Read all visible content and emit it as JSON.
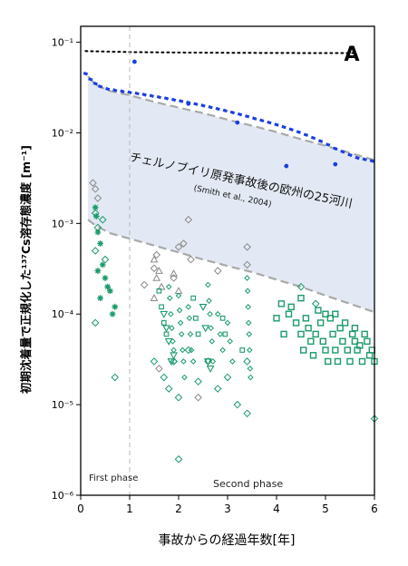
{
  "chart_data": {
    "type": "scatter",
    "panel_label": "A",
    "xlabel": "事故からの経過年数[年]",
    "ylabel": "初期沈着量で正規化した¹³⁷Cs溶存態濃度 [m⁻¹]",
    "xlim": [
      0,
      6
    ],
    "ylim": [
      1e-06,
      0.15
    ],
    "yscale": "log",
    "xticks": [
      0,
      1,
      2,
      3,
      4,
      5,
      6
    ],
    "ytick_labels": [
      "10⁻⁶",
      "10⁻⁵",
      "10⁻⁴",
      "10⁻³",
      "10⁻²",
      "10⁻¹"
    ],
    "grid": false,
    "phase_boundary_x": 1,
    "phases": [
      "First phase",
      "Second phase"
    ],
    "band_annotation": {
      "main": "チェルノブイリ原発事故後の欧州の25河川",
      "citation": "(Smith et al., 2004)"
    },
    "colors": {
      "band": "#e3e9f4",
      "blue": "#1b3fe0",
      "green": "#1a9b6a",
      "grey": "#8a8a8a"
    },
    "reference": {
      "band_upper": [
        [
          0.15,
          0.042
        ],
        [
          0.3,
          0.034
        ],
        [
          0.6,
          0.029
        ],
        [
          1,
          0.026
        ],
        [
          1.5,
          0.022
        ],
        [
          2,
          0.019
        ],
        [
          2.5,
          0.0165
        ],
        [
          3,
          0.014
        ],
        [
          3.5,
          0.012
        ],
        [
          4,
          0.0102
        ],
        [
          4.5,
          0.0085
        ],
        [
          5,
          0.0072
        ],
        [
          5.5,
          0.006
        ],
        [
          6,
          0.005
        ]
      ],
      "band_lower": [
        [
          0.15,
          0.0011
        ],
        [
          0.3,
          0.00095
        ],
        [
          0.6,
          0.00078
        ],
        [
          1,
          0.00068
        ],
        [
          1.5,
          0.00057
        ],
        [
          2,
          0.00048
        ],
        [
          2.5,
          0.0004
        ],
        [
          3,
          0.00034
        ],
        [
          3.5,
          0.00029
        ],
        [
          4,
          0.00024
        ],
        [
          4.5,
          0.0002
        ],
        [
          5,
          0.00016
        ],
        [
          5.5,
          0.00013
        ],
        [
          6,
          0.000105
        ]
      ],
      "dotted_top": [
        [
          0.1,
          0.08
        ],
        [
          0.5,
          0.079
        ],
        [
          1,
          0.078
        ],
        [
          2,
          0.077
        ],
        [
          3,
          0.0765
        ],
        [
          4,
          0.0762
        ],
        [
          5,
          0.076
        ],
        [
          5.6,
          0.076
        ]
      ],
      "blue_curve": [
        [
          0.1,
          0.045
        ],
        [
          0.2,
          0.039
        ],
        [
          0.3,
          0.035
        ],
        [
          0.4,
          0.0325
        ],
        [
          0.55,
          0.0305
        ],
        [
          0.7,
          0.0295
        ],
        [
          0.85,
          0.0287
        ],
        [
          1,
          0.028
        ],
        [
          1.15,
          0.0272
        ],
        [
          1.3,
          0.0264
        ],
        [
          1.45,
          0.0256
        ],
        [
          1.6,
          0.0248
        ],
        [
          1.75,
          0.024
        ],
        [
          1.9,
          0.0232
        ],
        [
          2.05,
          0.0224
        ],
        [
          2.2,
          0.0216
        ],
        [
          2.35,
          0.0208
        ],
        [
          2.5,
          0.02
        ],
        [
          2.65,
          0.0192
        ],
        [
          2.8,
          0.0184
        ],
        [
          2.95,
          0.0176
        ],
        [
          3.1,
          0.0168
        ],
        [
          3.25,
          0.016
        ],
        [
          3.4,
          0.0152
        ],
        [
          3.55,
          0.0144
        ],
        [
          3.7,
          0.0137
        ],
        [
          3.85,
          0.013
        ],
        [
          4,
          0.0123
        ],
        [
          4.15,
          0.0116
        ],
        [
          4.3,
          0.0109
        ],
        [
          4.45,
          0.0102
        ],
        [
          4.6,
          0.0095
        ],
        [
          4.75,
          0.0088
        ],
        [
          4.9,
          0.0081
        ],
        [
          5.05,
          0.0074
        ],
        [
          5.2,
          0.0067
        ],
        [
          5.35,
          0.0062
        ],
        [
          5.5,
          0.0057
        ],
        [
          5.65,
          0.0053
        ],
        [
          5.8,
          0.0051
        ],
        [
          5.95,
          0.0049
        ]
      ],
      "blue_outliers": [
        [
          1.1,
          0.061
        ],
        [
          2.2,
          0.021
        ],
        [
          3.2,
          0.013
        ],
        [
          4.2,
          0.0043
        ],
        [
          5.2,
          0.0045
        ]
      ]
    },
    "series": [
      {
        "marker": "diamond-open",
        "color": "#1a9b6a",
        "points": [
          [
            0.3,
            0.0013
          ],
          [
            0.35,
            0.0009
          ],
          [
            0.3,
            0.0005
          ],
          [
            0.45,
            0.0011
          ],
          [
            0.5,
            0.0004
          ],
          [
            0.3,
            8e-05
          ],
          [
            0.7,
            2e-05
          ],
          [
            1.5,
            3e-05
          ],
          [
            1.7,
            2e-05
          ],
          [
            1.8,
            1.5e-05
          ],
          [
            1.9,
            3e-05
          ],
          [
            2.0,
            1.2e-05
          ],
          [
            2.0,
            2.5e-06
          ],
          [
            2.2,
            4e-05
          ],
          [
            2.4,
            1.8e-05
          ],
          [
            2.6,
            3e-05
          ],
          [
            2.8,
            1.5e-05
          ],
          [
            3.0,
            2e-05
          ],
          [
            3.2,
            1e-05
          ],
          [
            3.4,
            3e-05
          ],
          [
            3.4,
            8e-06
          ],
          [
            4.5,
            0.0002
          ],
          [
            4.8,
            0.00013
          ],
          [
            6.0,
            7e-06
          ]
        ]
      },
      {
        "marker": "diamond-open",
        "color": "#8a8a8a",
        "points": [
          [
            0.25,
            0.0028
          ],
          [
            0.3,
            0.0024
          ],
          [
            0.35,
            0.0019
          ],
          [
            1.3,
            0.00021
          ],
          [
            1.5,
            0.00032
          ],
          [
            1.55,
            0.00045
          ],
          [
            1.9,
            0.00025
          ],
          [
            2.0,
            0.00055
          ],
          [
            2.1,
            0.0006
          ],
          [
            2.2,
            0.0011
          ],
          [
            2.25,
            0.0004
          ],
          [
            2.8,
            0.0003
          ],
          [
            3.4,
            0.00055
          ],
          [
            3.4,
            0.00035
          ],
          [
            1.6,
            2.5e-05
          ],
          [
            2.4,
            1.2e-05
          ]
        ]
      },
      {
        "marker": "star",
        "color": "#1a9b6a",
        "points": [
          [
            0.3,
            0.0015
          ],
          [
            0.32,
            0.0012
          ],
          [
            0.35,
            0.0008
          ],
          [
            0.4,
            0.0006
          ],
          [
            0.45,
            0.00035
          ],
          [
            0.5,
            0.00025
          ],
          [
            0.55,
            0.0002
          ],
          [
            0.6,
            0.00018
          ],
          [
            0.65,
            0.0001
          ],
          [
            0.7,
            0.00012
          ],
          [
            0.35,
            0.0003
          ],
          [
            0.4,
            0.00015
          ]
        ]
      },
      {
        "marker": "square-open",
        "color": "#1a9b6a",
        "points": [
          [
            4.3,
            0.00012
          ],
          [
            4.4,
            8e-05
          ],
          [
            4.5,
            6e-05
          ],
          [
            4.55,
            4e-05
          ],
          [
            4.6,
            9e-05
          ],
          [
            4.65,
            7e-05
          ],
          [
            4.7,
            5e-05
          ],
          [
            4.75,
            3.5e-05
          ],
          [
            4.8,
            6e-05
          ],
          [
            4.85,
            0.00011
          ],
          [
            4.9,
            8e-05
          ],
          [
            4.95,
            5e-05
          ],
          [
            5.0,
            4e-05
          ],
          [
            5.05,
            3e-05
          ],
          [
            5.1,
            9e-05
          ],
          [
            5.15,
            6e-05
          ],
          [
            5.2,
            4e-05
          ],
          [
            5.25,
            3e-05
          ],
          [
            5.3,
            7e-05
          ],
          [
            5.35,
            5e-05
          ],
          [
            5.4,
            8e-05
          ],
          [
            5.45,
            4e-05
          ],
          [
            5.5,
            3e-05
          ],
          [
            5.55,
            6e-05
          ],
          [
            5.6,
            5e-05
          ],
          [
            5.65,
            4e-05
          ],
          [
            5.7,
            4.5e-05
          ],
          [
            5.75,
            3e-05
          ],
          [
            5.8,
            6e-05
          ],
          [
            5.85,
            5e-05
          ],
          [
            5.9,
            3.5e-05
          ],
          [
            5.95,
            4e-05
          ],
          [
            6.0,
            3e-05
          ],
          [
            4.5,
            0.00015
          ],
          [
            5.0,
            0.0001
          ],
          [
            5.2,
            0.0001
          ],
          [
            4.0,
            9e-05
          ],
          [
            4.1,
            0.00013
          ],
          [
            4.15,
            6e-05
          ],
          [
            4.25,
            0.0001
          ],
          [
            5.6,
            7e-05
          ]
        ]
      },
      {
        "marker": "triangle-open",
        "color": "#8a8a8a",
        "points": [
          [
            1.5,
            0.0004
          ],
          [
            1.55,
            0.00025
          ],
          [
            1.5,
            0.00015
          ],
          [
            1.6,
            0.0003
          ],
          [
            1.65,
            0.0002
          ],
          [
            1.9,
            0.00028
          ],
          [
            2.0,
            0.00018
          ]
        ]
      },
      {
        "marker": "triangle-down",
        "color": "#1a9b6a",
        "points": [
          [
            1.7,
            0.0001
          ],
          [
            1.75,
            7e-05
          ],
          [
            1.8,
            5e-05
          ],
          [
            1.85,
            3e-05
          ],
          [
            1.9,
            3.5e-05
          ],
          [
            2.5,
            0.00012
          ],
          [
            2.55,
            7e-05
          ],
          [
            2.6,
            3e-05
          ],
          [
            2.65,
            2.5e-05
          ]
        ]
      },
      {
        "marker": "diamond-small",
        "color": "#1a9b6a",
        "points": [
          [
            1.8,
            0.0002
          ],
          [
            1.82,
            0.00015
          ],
          [
            1.84,
            0.0001
          ],
          [
            1.86,
            7e-05
          ],
          [
            1.88,
            5e-05
          ],
          [
            1.9,
            4e-05
          ],
          [
            1.92,
            3e-05
          ],
          [
            2.0,
            0.00016
          ],
          [
            2.02,
            0.00011
          ],
          [
            2.04,
            8e-05
          ],
          [
            2.06,
            6e-05
          ],
          [
            2.08,
            4e-05
          ],
          [
            2.1,
            3e-05
          ],
          [
            2.12,
            2e-05
          ],
          [
            2.2,
            0.00012
          ],
          [
            2.22,
            9e-05
          ],
          [
            2.24,
            6e-05
          ],
          [
            2.26,
            4e-05
          ],
          [
            2.3,
            3e-05
          ],
          [
            2.6,
            0.00021
          ],
          [
            2.62,
            0.00014
          ],
          [
            2.64,
            0.0001
          ],
          [
            2.66,
            7e-05
          ],
          [
            2.68,
            5e-05
          ],
          [
            2.7,
            3e-05
          ],
          [
            3.4,
            0.00025
          ],
          [
            3.41,
            0.00018
          ],
          [
            3.42,
            0.00012
          ],
          [
            3.43,
            8e-05
          ],
          [
            3.44,
            6e-05
          ],
          [
            3.45,
            4e-05
          ],
          [
            3.46,
            2.5e-05
          ],
          [
            3.47,
            2e-05
          ],
          [
            2.8,
            0.0001
          ],
          [
            2.85,
            6e-05
          ],
          [
            2.9,
            4e-05
          ],
          [
            3.0,
            8e-05
          ],
          [
            3.05,
            5e-05
          ],
          [
            3.1,
            3e-05
          ]
        ]
      },
      {
        "marker": "square-small",
        "color": "#1a9b6a",
        "points": [
          [
            1.6,
            0.00018
          ],
          [
            1.65,
            0.00012
          ],
          [
            1.7,
            8e-05
          ],
          [
            1.75,
            6e-05
          ],
          [
            2.3,
            0.00015
          ],
          [
            2.35,
            9e-05
          ],
          [
            2.4,
            6e-05
          ],
          [
            2.9,
            9e-05
          ],
          [
            2.95,
            6e-05
          ],
          [
            3.3,
            4e-05
          ]
        ]
      }
    ]
  }
}
